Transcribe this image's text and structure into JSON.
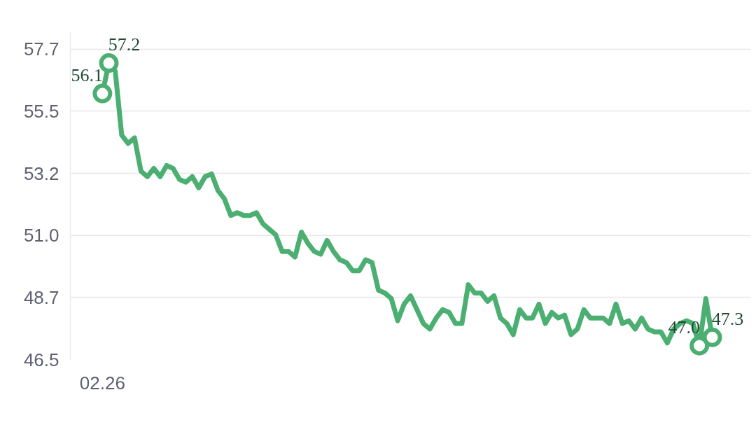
{
  "chart_data": {
    "type": "line",
    "categories": [
      "02.26",
      null,
      null,
      null,
      null,
      null,
      null,
      null,
      null,
      null,
      null,
      null,
      null,
      null,
      null,
      null,
      null,
      null,
      null,
      null,
      null,
      null,
      null,
      null,
      null,
      null,
      null,
      null,
      null,
      null,
      null,
      null,
      null,
      null,
      null,
      null,
      null,
      null,
      null,
      null,
      null,
      null,
      null,
      null,
      null,
      null,
      null,
      null,
      null,
      null,
      null,
      null,
      null,
      null,
      null,
      null,
      null,
      null,
      null,
      null,
      null,
      null,
      null,
      null,
      null,
      null,
      null,
      null,
      null,
      null,
      null,
      null,
      null,
      null,
      null,
      null,
      null,
      null,
      null,
      null,
      null,
      null,
      null,
      null,
      null,
      null,
      null,
      null,
      null,
      null,
      null,
      null,
      null,
      null,
      null,
      null
    ],
    "series": [
      {
        "color": "#4caf72",
        "values": [
          56.1,
          57.2,
          56.9,
          54.6,
          54.3,
          54.5,
          53.3,
          53.1,
          53.4,
          53.1,
          53.5,
          53.4,
          53.0,
          52.9,
          53.1,
          52.7,
          53.1,
          53.2,
          52.6,
          52.3,
          51.7,
          51.8,
          51.7,
          51.7,
          51.8,
          51.4,
          51.2,
          51.0,
          50.4,
          50.4,
          50.2,
          51.1,
          50.7,
          50.4,
          50.3,
          50.8,
          50.4,
          50.1,
          50.0,
          49.7,
          49.7,
          50.1,
          50.0,
          49.0,
          48.9,
          48.7,
          47.9,
          48.5,
          48.8,
          48.3,
          47.8,
          47.6,
          48.0,
          48.3,
          48.2,
          47.8,
          47.8,
          49.2,
          48.9,
          48.9,
          48.6,
          48.8,
          48.0,
          47.8,
          47.4,
          48.3,
          48.0,
          48.0,
          48.5,
          47.8,
          48.2,
          48.0,
          48.1,
          47.4,
          47.6,
          48.3,
          48.0,
          48.0,
          48.0,
          47.8,
          48.5,
          47.8,
          47.9,
          47.6,
          48.0,
          47.6,
          47.5,
          47.5,
          47.1,
          47.6,
          47.8,
          47.9,
          47.8,
          47.0,
          48.7,
          47.3
        ],
        "value_labels": [
          "56.1",
          "57.2",
          null,
          null,
          null,
          null,
          null,
          null,
          null,
          null,
          null,
          null,
          null,
          null,
          null,
          null,
          null,
          null,
          null,
          null,
          null,
          null,
          null,
          null,
          null,
          null,
          null,
          null,
          null,
          null,
          null,
          null,
          null,
          null,
          null,
          null,
          null,
          null,
          null,
          null,
          null,
          null,
          null,
          null,
          null,
          null,
          null,
          null,
          null,
          null,
          null,
          null,
          null,
          null,
          null,
          null,
          null,
          null,
          null,
          null,
          null,
          null,
          null,
          null,
          null,
          null,
          null,
          null,
          null,
          null,
          null,
          null,
          null,
          null,
          null,
          null,
          null,
          null,
          null,
          null,
          null,
          null,
          null,
          null,
          null,
          null,
          null,
          null,
          null,
          null,
          null,
          null,
          null,
          "47.0",
          null,
          "47.3"
        ]
      }
    ],
    "ylim": [
      46.5,
      58.3
    ],
    "yticks": [
      {
        "value": 46.5,
        "label": "46.5"
      },
      {
        "value": 48.74,
        "label": "48.7"
      },
      {
        "value": 50.98,
        "label": "51.0"
      },
      {
        "value": 53.22,
        "label": "53.2"
      },
      {
        "value": 55.46,
        "label": "55.5"
      },
      {
        "value": 57.7,
        "label": "57.7"
      }
    ],
    "grid": "y"
  }
}
